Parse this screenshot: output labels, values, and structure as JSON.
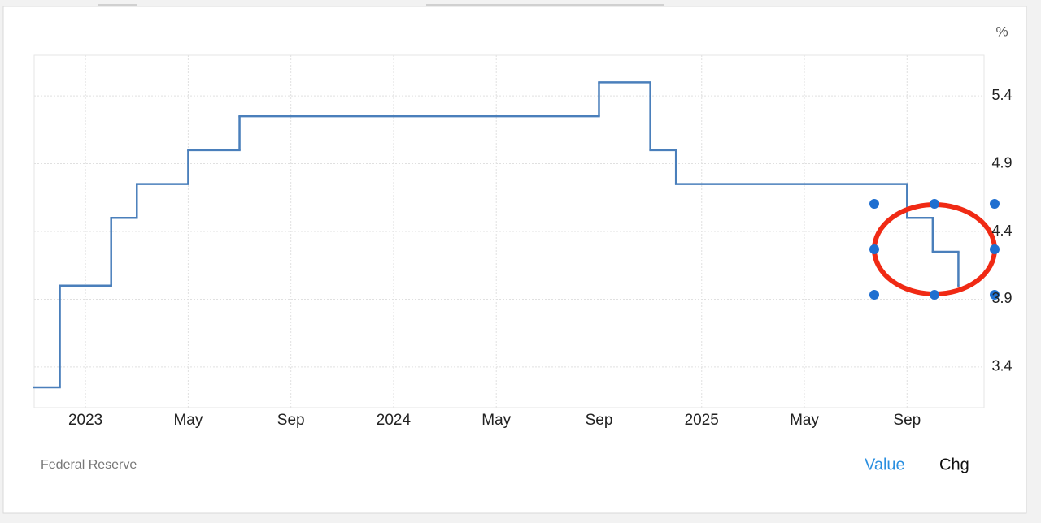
{
  "chart_data": {
    "type": "step-line",
    "unit": "%",
    "source": "Federal Reserve",
    "tabs": [
      "Value",
      "Chg"
    ],
    "x": [
      "2022-11",
      "2022-12",
      "2023-02",
      "2023-03",
      "2023-05",
      "2023-07",
      "2024-09",
      "2024-11",
      "2024-12",
      "2025-09",
      "2025-10",
      "2025-11"
    ],
    "series": [
      {
        "color": "#4a7fbb",
        "values": [
          3.25,
          4.0,
          4.5,
          4.75,
          5.0,
          5.25,
          5.5,
          5.0,
          4.75,
          4.5,
          4.25,
          4.0
        ]
      }
    ],
    "xlim": [
      "2022-11",
      "2025-12"
    ],
    "xticks": [
      {
        "value": "2023-01",
        "label": "2023"
      },
      {
        "value": "2023-05",
        "label": "May"
      },
      {
        "value": "2023-09",
        "label": "Sep"
      },
      {
        "value": "2024-01",
        "label": "2024"
      },
      {
        "value": "2024-05",
        "label": "May"
      },
      {
        "value": "2024-09",
        "label": "Sep"
      },
      {
        "value": "2025-01",
        "label": "2025"
      },
      {
        "value": "2025-05",
        "label": "May"
      },
      {
        "value": "2025-09",
        "label": "Sep"
      }
    ],
    "ylim": [
      3.1,
      5.7
    ],
    "yticks": [
      3.4,
      3.9,
      4.4,
      4.9,
      5.4
    ],
    "grid": true
  }
}
